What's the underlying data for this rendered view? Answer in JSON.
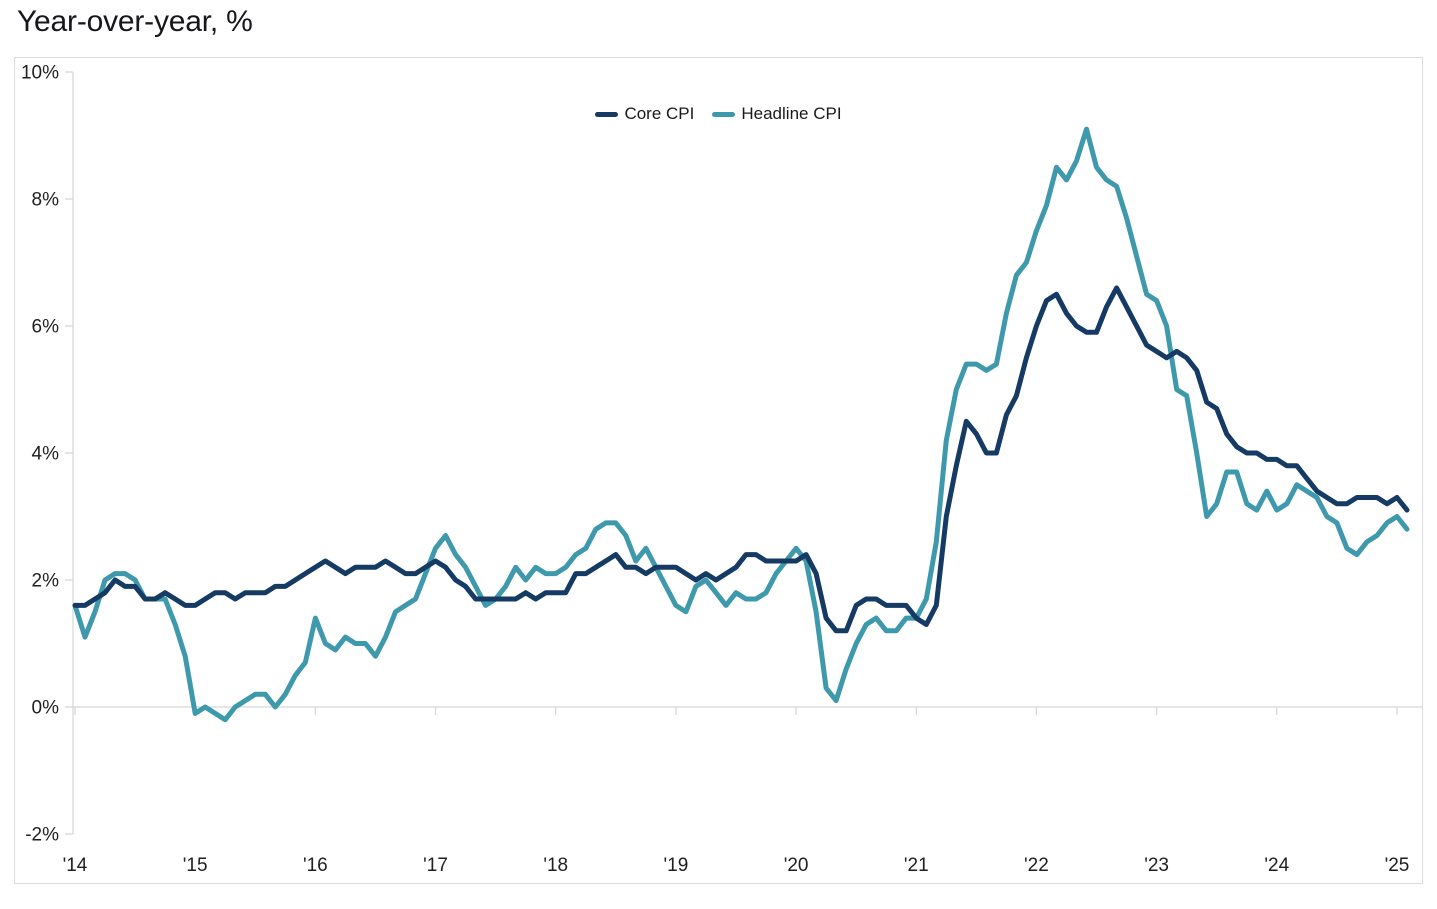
{
  "page": {
    "title": "Year-over-year, %"
  },
  "chart_data": {
    "type": "line",
    "title": "Year-over-year, %",
    "ylabel": "Year-over-year, %",
    "x": {
      "start": "2014-01",
      "end": "2025-02",
      "frequency": "monthly",
      "tick_labels": [
        "'14",
        "'15",
        "'16",
        "'17",
        "'18",
        "'19",
        "'20",
        "'21",
        "'22",
        "'23",
        "'24",
        "'25"
      ]
    },
    "y": {
      "min": -2,
      "max": 10,
      "tick_step": 2,
      "tick_values": [
        10,
        8,
        6,
        4,
        2,
        0,
        -2
      ],
      "tick_labels": [
        "10%",
        "8%",
        "6%",
        "4%",
        "2%",
        "0%",
        "-2%"
      ]
    },
    "grid": {
      "zero_baseline_only": true
    },
    "legend_position": "top-center",
    "colors": {
      "axis": "#d6d6d6",
      "border": "#dcdcdc",
      "tick_text": "#1f1f1f"
    },
    "series": [
      {
        "name": "Core CPI",
        "color": "#153a63",
        "values": [
          1.6,
          1.6,
          1.7,
          1.8,
          2.0,
          1.9,
          1.9,
          1.7,
          1.7,
          1.8,
          1.7,
          1.6,
          1.6,
          1.7,
          1.8,
          1.8,
          1.7,
          1.8,
          1.8,
          1.8,
          1.9,
          1.9,
          2.0,
          2.1,
          2.2,
          2.3,
          2.2,
          2.1,
          2.2,
          2.2,
          2.2,
          2.3,
          2.2,
          2.1,
          2.1,
          2.2,
          2.3,
          2.2,
          2.0,
          1.9,
          1.7,
          1.7,
          1.7,
          1.7,
          1.7,
          1.8,
          1.7,
          1.8,
          1.8,
          1.8,
          2.1,
          2.1,
          2.2,
          2.3,
          2.4,
          2.2,
          2.2,
          2.1,
          2.2,
          2.2,
          2.2,
          2.1,
          2.0,
          2.1,
          2.0,
          2.1,
          2.2,
          2.4,
          2.4,
          2.3,
          2.3,
          2.3,
          2.3,
          2.4,
          2.1,
          1.4,
          1.2,
          1.2,
          1.6,
          1.7,
          1.7,
          1.6,
          1.6,
          1.6,
          1.4,
          1.3,
          1.6,
          3.0,
          3.8,
          4.5,
          4.3,
          4.0,
          4.0,
          4.6,
          4.9,
          5.5,
          6.0,
          6.4,
          6.5,
          6.2,
          6.0,
          5.9,
          5.9,
          6.3,
          6.6,
          6.3,
          6.0,
          5.7,
          5.6,
          5.5,
          5.6,
          5.5,
          5.3,
          4.8,
          4.7,
          4.3,
          4.1,
          4.0,
          4.0,
          3.9,
          3.9,
          3.8,
          3.8,
          3.6,
          3.4,
          3.3,
          3.2,
          3.2,
          3.3,
          3.3,
          3.3,
          3.2,
          3.3,
          3.1
        ]
      },
      {
        "name": "Headline CPI",
        "color": "#3f99ac",
        "values": [
          1.6,
          1.1,
          1.5,
          2.0,
          2.1,
          2.1,
          2.0,
          1.7,
          1.7,
          1.7,
          1.3,
          0.8,
          -0.1,
          0.0,
          -0.1,
          -0.2,
          0.0,
          0.1,
          0.2,
          0.2,
          0.0,
          0.2,
          0.5,
          0.7,
          1.4,
          1.0,
          0.9,
          1.1,
          1.0,
          1.0,
          0.8,
          1.1,
          1.5,
          1.6,
          1.7,
          2.1,
          2.5,
          2.7,
          2.4,
          2.2,
          1.9,
          1.6,
          1.7,
          1.9,
          2.2,
          2.0,
          2.2,
          2.1,
          2.1,
          2.2,
          2.4,
          2.5,
          2.8,
          2.9,
          2.9,
          2.7,
          2.3,
          2.5,
          2.2,
          1.9,
          1.6,
          1.5,
          1.9,
          2.0,
          1.8,
          1.6,
          1.8,
          1.7,
          1.7,
          1.8,
          2.1,
          2.3,
          2.5,
          2.3,
          1.5,
          0.3,
          0.1,
          0.6,
          1.0,
          1.3,
          1.4,
          1.2,
          1.2,
          1.4,
          1.4,
          1.7,
          2.6,
          4.2,
          5.0,
          5.4,
          5.4,
          5.3,
          5.4,
          6.2,
          6.8,
          7.0,
          7.5,
          7.9,
          8.5,
          8.3,
          8.6,
          9.1,
          8.5,
          8.3,
          8.2,
          7.7,
          7.1,
          6.5,
          6.4,
          6.0,
          5.0,
          4.9,
          4.0,
          3.0,
          3.2,
          3.7,
          3.7,
          3.2,
          3.1,
          3.4,
          3.1,
          3.2,
          3.5,
          3.4,
          3.3,
          3.0,
          2.9,
          2.5,
          2.4,
          2.6,
          2.7,
          2.9,
          3.0,
          2.8
        ]
      }
    ]
  }
}
